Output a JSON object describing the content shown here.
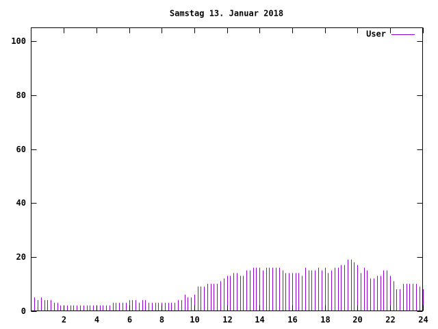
{
  "chart_data": {
    "type": "impulses",
    "title": "Samstag 13. Januar 2018",
    "xlim": [
      0,
      24
    ],
    "ylim": [
      0,
      105
    ],
    "xticks": [
      2,
      4,
      6,
      8,
      10,
      12,
      14,
      16,
      18,
      20,
      22,
      24
    ],
    "yticks": [
      0,
      20,
      40,
      60,
      80,
      100
    ],
    "legend": "top-right",
    "x": [
      0.2,
      0.4,
      0.6,
      0.8,
      1.0,
      1.2,
      1.4,
      1.6,
      1.8,
      2.0,
      2.2,
      2.4,
      2.6,
      2.8,
      3.0,
      3.2,
      3.4,
      3.6,
      3.8,
      4.0,
      4.2,
      4.4,
      4.6,
      4.8,
      5.0,
      5.2,
      5.4,
      5.6,
      5.8,
      6.0,
      6.2,
      6.4,
      6.6,
      6.8,
      7.0,
      7.2,
      7.4,
      7.6,
      7.8,
      8.0,
      8.2,
      8.4,
      8.6,
      8.8,
      9.0,
      9.2,
      9.4,
      9.6,
      9.8,
      10.0,
      10.2,
      10.4,
      10.6,
      10.8,
      11.0,
      11.2,
      11.4,
      11.6,
      11.8,
      12.0,
      12.2,
      12.4,
      12.6,
      12.8,
      13.0,
      13.2,
      13.4,
      13.6,
      13.8,
      14.0,
      14.2,
      14.4,
      14.6,
      14.8,
      15.0,
      15.2,
      15.4,
      15.6,
      15.8,
      16.0,
      16.2,
      16.4,
      16.6,
      16.8,
      17.0,
      17.2,
      17.4,
      17.6,
      17.8,
      18.0,
      18.2,
      18.4,
      18.6,
      18.8,
      19.0,
      19.2,
      19.4,
      19.6,
      19.8,
      20.0,
      20.2,
      20.4,
      20.6,
      20.8,
      21.0,
      21.2,
      21.4,
      21.6,
      21.8,
      22.0,
      22.2,
      22.4,
      22.6,
      22.8,
      23.0,
      23.2,
      23.4,
      23.6,
      23.8,
      24.0
    ],
    "series": [
      {
        "name": "User",
        "color": "#9400d3",
        "values": [
          5,
          4,
          5,
          4,
          4,
          4,
          3,
          3,
          2,
          2,
          2,
          2,
          2,
          2,
          2,
          2,
          2,
          2,
          2,
          2,
          2,
          2,
          2,
          2,
          3,
          3,
          3,
          3,
          3,
          4,
          4,
          4,
          3,
          4,
          4,
          3,
          3,
          3,
          3,
          3,
          3,
          3,
          3,
          3,
          4,
          4,
          6,
          5,
          5,
          6,
          9,
          9,
          9,
          10,
          10,
          10,
          10,
          11,
          12,
          13,
          13,
          14,
          14,
          13,
          13,
          15,
          15,
          16,
          16,
          16,
          15,
          16,
          16,
          16,
          16,
          16,
          15,
          14,
          14,
          14,
          14,
          14,
          13,
          16,
          15,
          15,
          15,
          16,
          15,
          16,
          14,
          15,
          16,
          16,
          17,
          17,
          19,
          19,
          18,
          17,
          14,
          16,
          15,
          12,
          12,
          13,
          13,
          15,
          15,
          13,
          11,
          8,
          8,
          10,
          10,
          10,
          10,
          10,
          9,
          8
        ]
      }
    ]
  }
}
